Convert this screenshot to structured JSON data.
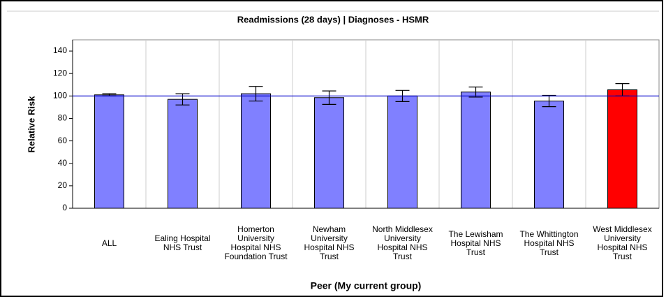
{
  "chart_data": {
    "type": "bar",
    "title": "Readmissions (28 days) | Diagnoses - HSMR",
    "x_label": "Peer (My current group)",
    "y_label": "Relative Risk",
    "categories": [
      "ALL",
      "Ealing Hospital NHS Trust",
      "Homerton University Hospital NHS Foundation Trust",
      "Newham University Hospital NHS Trust",
      "North Middlesex University Hospital NHS Trust",
      "The Lewisham Hospital NHS Trust",
      "The Whittington Hospital NHS Trust",
      "West Middlesex University Hospital NHS Trust"
    ],
    "values": [
      101,
      97,
      102,
      98.5,
      100,
      103.5,
      95.5,
      105.5
    ],
    "errors": [
      1,
      5,
      6.5,
      6,
      5,
      4.5,
      5,
      5.5
    ],
    "colors": [
      "#8080ff",
      "#8080ff",
      "#8080ff",
      "#8080ff",
      "#8080ff",
      "#8080ff",
      "#8080ff",
      "#ff0000"
    ],
    "reference_line": 100,
    "reference_color": "#0000cc",
    "ylim": [
      0,
      150
    ],
    "yticks": [
      0,
      20,
      40,
      60,
      80,
      100,
      120,
      140
    ],
    "grid": true
  }
}
